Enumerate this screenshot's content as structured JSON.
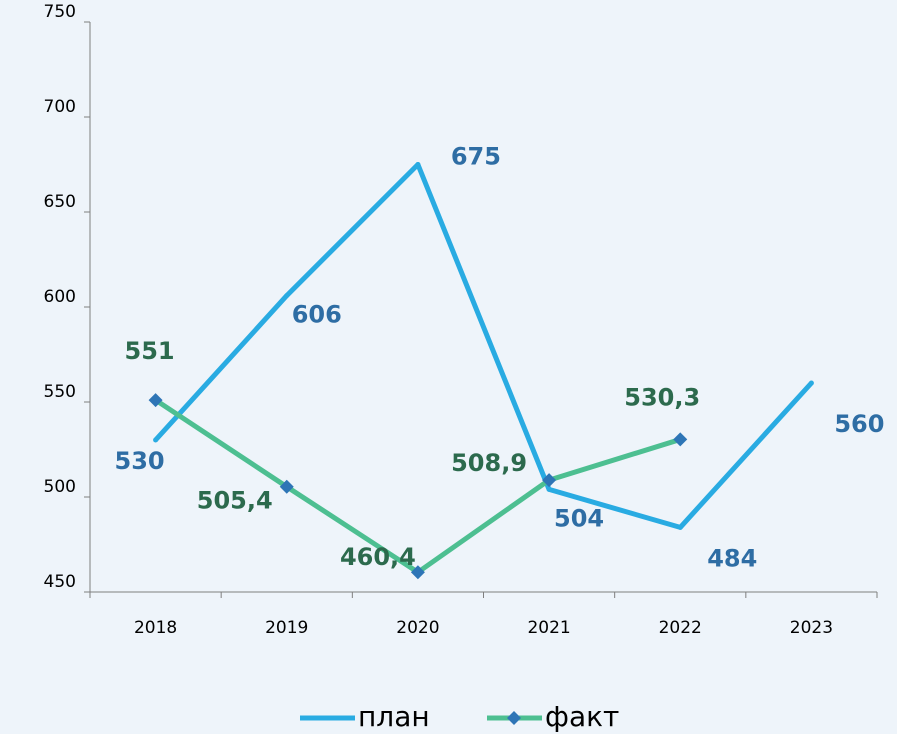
{
  "chart_data": {
    "type": "line",
    "categories": [
      "2018",
      "2019",
      "2020",
      "2021",
      "2022",
      "2023"
    ],
    "series": [
      {
        "name": "план",
        "color": "#29abe2",
        "label_color": "#2e6da4",
        "marker": "none",
        "values": [
          530,
          606,
          675,
          504,
          484,
          560
        ]
      },
      {
        "name": "факт",
        "color": "#4dbf91",
        "label_color": "#2c6a4d",
        "marker": "diamond",
        "marker_color": "#2e75b6",
        "values": [
          551,
          505.4,
          460.4,
          508.9,
          530.3,
          null
        ],
        "value_labels": [
          "551",
          "505,4",
          "460,4",
          "508,9",
          "530,3",
          null
        ]
      }
    ],
    "ylim": [
      450,
      750
    ],
    "yticks": [
      450,
      500,
      550,
      600,
      650,
      700,
      750
    ],
    "grid": false,
    "legend": "bottom"
  }
}
